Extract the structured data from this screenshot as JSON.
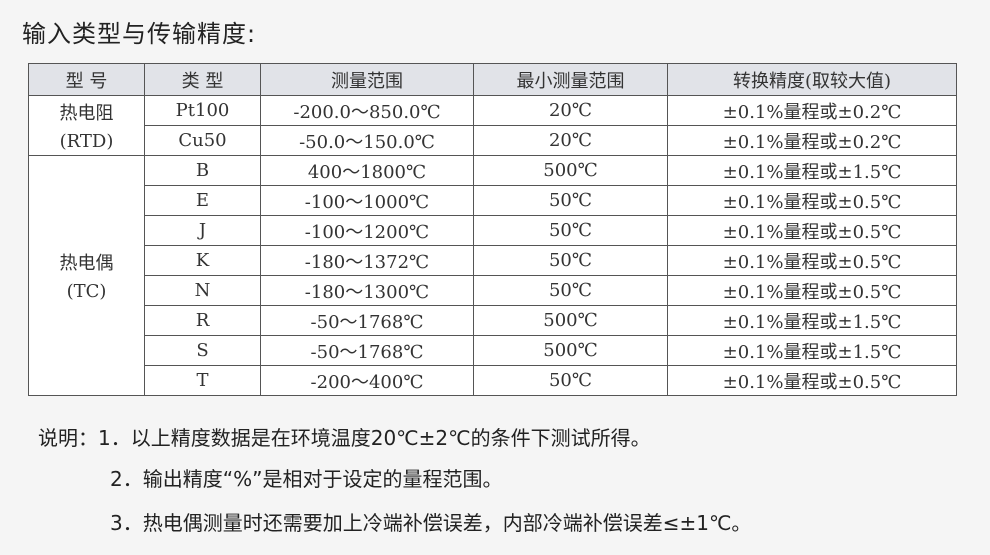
{
  "title": "输入类型与传输精度:",
  "table": {
    "headers": [
      "型 号",
      "类 型",
      "测量范围",
      "最小测量范围",
      "转换精度(取较大值)"
    ],
    "groups": [
      {
        "model_lines": [
          "热电阻",
          "(RTD)"
        ],
        "rows": [
          [
            "Pt100",
            "-200.0～850.0℃",
            "20℃",
            "±0.1%量程或±0.2℃"
          ],
          [
            "Cu50",
            "-50.0～150.0℃",
            "20℃",
            "±0.1%量程或±0.2℃"
          ]
        ]
      },
      {
        "model_lines": [
          "热电偶",
          "(TC)"
        ],
        "rows": [
          [
            "B",
            "400～1800℃",
            "500℃",
            "±0.1%量程或±1.5℃"
          ],
          [
            "E",
            "-100～1000℃",
            "50℃",
            "±0.1%量程或±0.5℃"
          ],
          [
            "J",
            "-100～1200℃",
            "50℃",
            "±0.1%量程或±0.5℃"
          ],
          [
            "K",
            "-180～1372℃",
            "50℃",
            "±0.1%量程或±0.5℃"
          ],
          [
            "N",
            "-180～1300℃",
            "50℃",
            "±0.1%量程或±0.5℃"
          ],
          [
            "R",
            "-50～1768℃",
            "500℃",
            "±0.1%量程或±1.5℃"
          ],
          [
            "S",
            "-50～1768℃",
            "500℃",
            "±0.1%量程或±1.5℃"
          ],
          [
            "T",
            "-200～400℃",
            "50℃",
            "±0.1%量程或±0.5℃"
          ]
        ]
      }
    ]
  },
  "notes": [
    "说明：1．以上精度数据是在环境温度20℃±2℃的条件下测试所得。",
    "2．输出精度“%”是相对于设定的量程范围。",
    "3．热电偶测量时还需要加上冷端补偿误差，内部冷端补偿误差≤±1℃。"
  ]
}
